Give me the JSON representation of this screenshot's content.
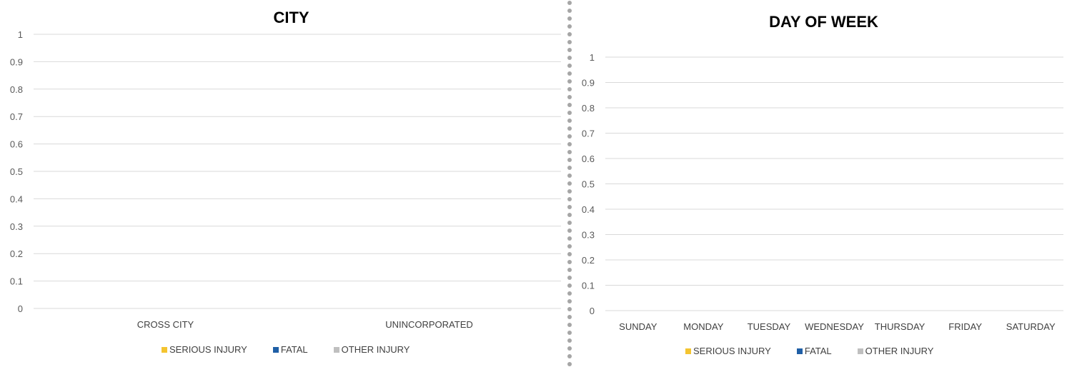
{
  "chart_data": [
    {
      "type": "bar",
      "title": "CITY",
      "categories": [
        "CROSS CITY",
        "UNINCORPORATED"
      ],
      "series": [
        {
          "name": "SERIOUS INJURY",
          "color": "#f4c430",
          "values": [
            0,
            0
          ]
        },
        {
          "name": "FATAL",
          "color": "#1f5fa6",
          "values": [
            0,
            0
          ]
        },
        {
          "name": "OTHER INJURY",
          "color": "#bfbfbf",
          "values": [
            0,
            0
          ]
        }
      ],
      "yticks": [
        "0",
        "0.1",
        "0.2",
        "0.3",
        "0.4",
        "0.5",
        "0.6",
        "0.7",
        "0.8",
        "0.9",
        "1"
      ],
      "ylim": [
        0,
        1
      ],
      "grid": true,
      "legend_position": "bottom"
    },
    {
      "type": "bar",
      "title": "DAY OF WEEK",
      "categories": [
        "SUNDAY",
        "MONDAY",
        "TUESDAY",
        "WEDNESDAY",
        "THURSDAY",
        "FRIDAY",
        "SATURDAY"
      ],
      "series": [
        {
          "name": "SERIOUS INJURY",
          "color": "#f4c430",
          "values": [
            0,
            0,
            0,
            0,
            0,
            0,
            0
          ]
        },
        {
          "name": "FATAL",
          "color": "#1f5fa6",
          "values": [
            0,
            0,
            0,
            0,
            0,
            0,
            0
          ]
        },
        {
          "name": "OTHER INJURY",
          "color": "#bfbfbf",
          "values": [
            0,
            0,
            0,
            0,
            0,
            0,
            0
          ]
        }
      ],
      "yticks": [
        "0",
        "0.1",
        "0.2",
        "0.3",
        "0.4",
        "0.5",
        "0.6",
        "0.7",
        "0.8",
        "0.9",
        "1"
      ],
      "ylim": [
        0,
        1
      ],
      "grid": true,
      "legend_position": "bottom"
    }
  ]
}
